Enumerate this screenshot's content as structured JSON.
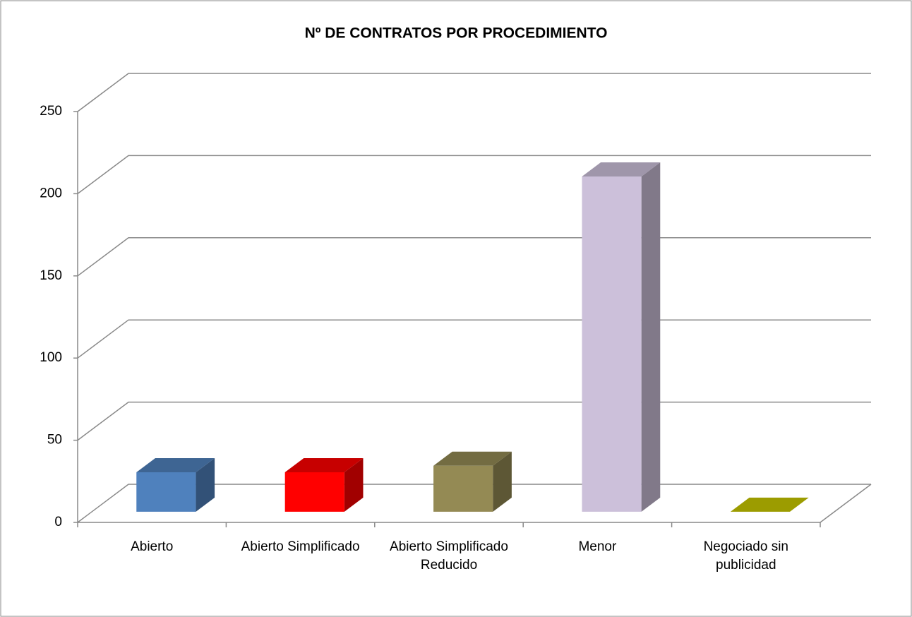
{
  "chart_data": {
    "type": "bar3d",
    "title": "Nº DE CONTRATOS POR PROCEDIMIENTO",
    "categories": [
      "Abierto",
      "Abierto Simplificado",
      "Abierto Simplificado Reducido",
      "Menor",
      "Negociado sin publicidad"
    ],
    "values": [
      24,
      24,
      28,
      204,
      0
    ],
    "colors": [
      "#4f81bd",
      "#ff0000",
      "#948a54",
      "#ccc0da",
      "#c8c800"
    ],
    "ylim": [
      0,
      250
    ],
    "yticks": [
      0,
      50,
      100,
      150,
      200,
      250
    ],
    "grid": true
  }
}
